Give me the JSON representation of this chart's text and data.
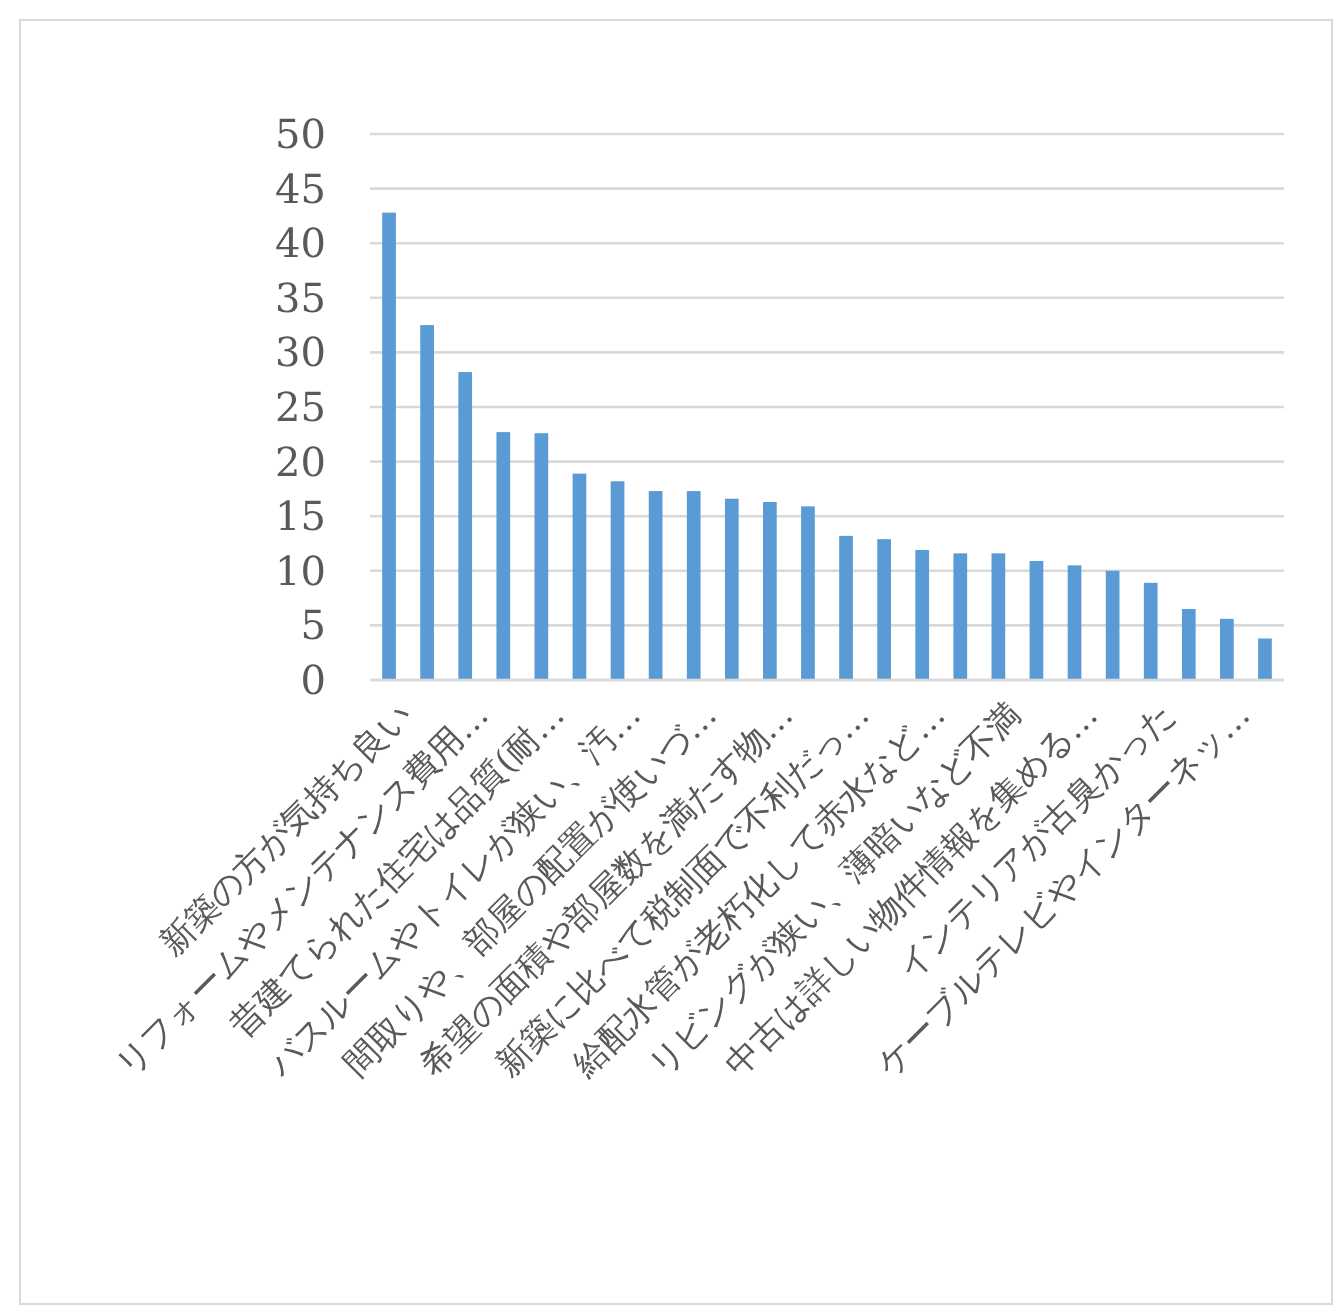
{
  "chart_data": {
    "type": "bar",
    "categories": [
      "新築の方が気持ち良い",
      null,
      "リフォームやメンテナンス費用…",
      null,
      "昔建てられた住宅は品質(耐…",
      null,
      "バスルームやトイレが狭い、汚…",
      null,
      "間取りや、部屋の配置が使いづ…",
      null,
      "希望の面積や部屋数を満たす物…",
      null,
      "新築に比べて税制面で不利だっ…",
      null,
      "給配水管が老朽化して赤水など…",
      null,
      "リビングが狭い、薄暗いなど不満",
      null,
      "中古は詳しい物件情報を集める…",
      null,
      "インテリアが古臭かった",
      null,
      "ケーブルテレビやインターネッ…",
      null
    ],
    "values": [
      42.8,
      32.5,
      28.2,
      22.7,
      22.6,
      18.9,
      18.2,
      17.3,
      17.3,
      16.6,
      16.3,
      15.9,
      13.2,
      12.9,
      11.9,
      11.6,
      11.6,
      10.9,
      10.5,
      10.0,
      8.9,
      6.5,
      5.6,
      3.8
    ],
    "color": "#5b9bd5",
    "ylim": [
      0,
      50
    ],
    "yticks": [
      0,
      5,
      10,
      15,
      20,
      25,
      30,
      35,
      40,
      45,
      50
    ],
    "grid": "y"
  }
}
